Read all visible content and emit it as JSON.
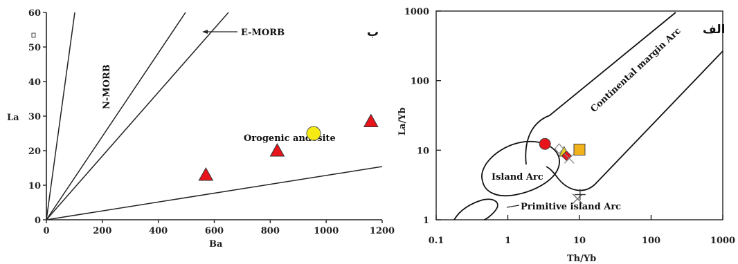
{
  "chart_data": [
    {
      "type": "scatter",
      "panel_label": "ب",
      "xlabel": "Ba",
      "ylabel": "La",
      "xlim": [
        0,
        1200
      ],
      "ylim": [
        0,
        60
      ],
      "xticks": [
        "0",
        "200",
        "400",
        "600",
        "800",
        "1000",
        "1200"
      ],
      "yticks": [
        "0",
        "10",
        "20",
        "30",
        "40",
        "50",
        "60"
      ],
      "field_labels": [
        "N-MORB",
        "E-MORB",
        "Orogenic andesite"
      ],
      "points": [
        {
          "x": 570,
          "y": 13,
          "marker": "triangle",
          "color": "#e8141c"
        },
        {
          "x": 825,
          "y": 20,
          "marker": "triangle",
          "color": "#e8141c"
        },
        {
          "x": 1160,
          "y": 28.5,
          "marker": "triangle",
          "color": "#e8141c"
        },
        {
          "x": 955,
          "y": 25,
          "marker": "circle",
          "color": "#f5ea14"
        }
      ]
    },
    {
      "type": "scatter",
      "panel_label": "الف",
      "xlabel": "Th/Yb",
      "ylabel": "La/Yb",
      "xscale": "log",
      "yscale": "log",
      "xlim": [
        0.1,
        1000
      ],
      "ylim": [
        1,
        1000
      ],
      "xticks": [
        "0.1",
        "1",
        "10",
        "100",
        "1000"
      ],
      "yticks": [
        "1",
        "10",
        "100",
        "1000"
      ],
      "field_labels": [
        "Continental margin Arc",
        "Island Arc",
        "Primitive island Arc"
      ],
      "points": [
        {
          "x": 3.3,
          "y": 12.3,
          "marker": "circle",
          "color": "#e8141c"
        },
        {
          "x": 10,
          "y": 10.2,
          "marker": "square",
          "color": "#f2b21b"
        },
        {
          "x": 6.1,
          "y": 9.4,
          "marker": "triangle",
          "color": "#e6d21c"
        },
        {
          "x": 6.6,
          "y": 8.3,
          "marker": "diamond",
          "color": "#e8141c"
        },
        {
          "x": 5.2,
          "y": 10.5,
          "marker": "open-diamond",
          "color": "#888888"
        },
        {
          "x": 7.2,
          "y": 7.6,
          "marker": "x",
          "color": "#888888"
        },
        {
          "x": 9.4,
          "y": 2.0,
          "marker": "x",
          "color": "#666666"
        },
        {
          "x": 10.2,
          "y": 2.3,
          "marker": "plus",
          "color": "#333333"
        }
      ]
    }
  ]
}
